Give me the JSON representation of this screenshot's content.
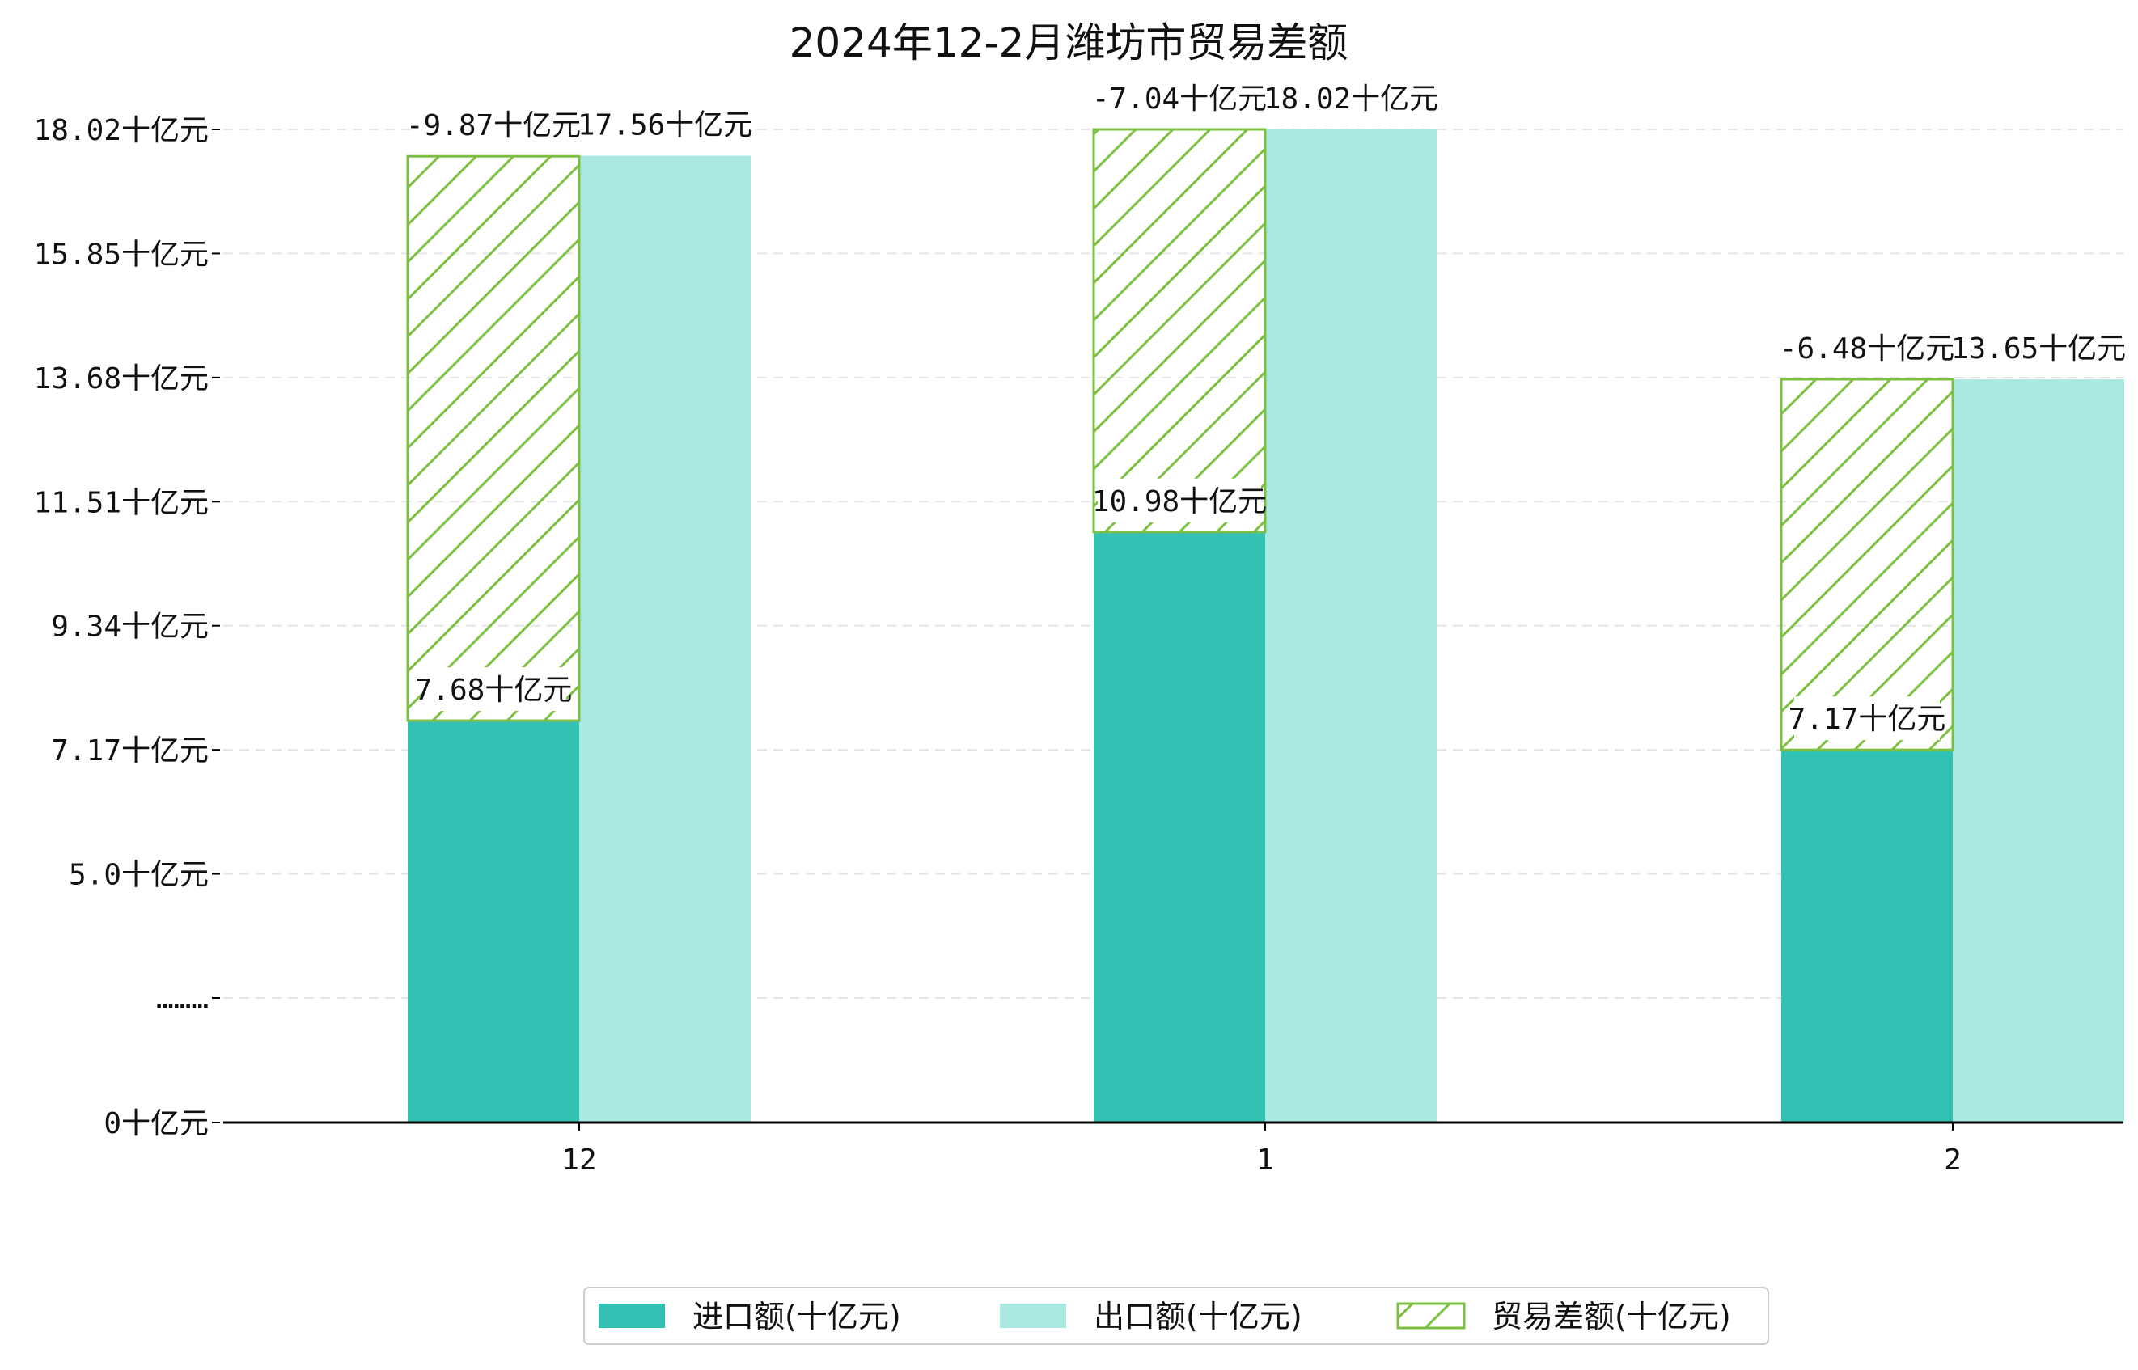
{
  "chart_data": {
    "type": "bar",
    "title": "2024年12-2月潍坊市贸易差额",
    "xlabel": "",
    "ylabel": "",
    "categories": [
      "12",
      "1",
      "2"
    ],
    "series": [
      {
        "name": "进口额(十亿元)",
        "values": [
          7.68,
          10.98,
          7.17
        ],
        "labels": [
          "7.68十亿元",
          "10.98十亿元",
          "7.17十亿元"
        ]
      },
      {
        "name": "出口额(十亿元)",
        "values": [
          17.56,
          18.02,
          13.65
        ],
        "labels": [
          "17.56十亿元",
          "18.02十亿元",
          "13.65十亿元"
        ]
      },
      {
        "name": "贸易差额(十亿元)",
        "values": [
          -9.87,
          -7.04,
          -6.48
        ],
        "labels": [
          "-9.87十亿元",
          "-7.04十亿元",
          "-6.48十亿元"
        ]
      }
    ],
    "y_tick_labels": [
      "0十亿元",
      "………",
      "5.0十亿元",
      "7.17十亿元",
      "9.34十亿元",
      "11.51十亿元",
      "13.68十亿元",
      "15.85十亿元",
      "18.02十亿元"
    ],
    "y_tick_values": [
      0,
      2.83,
      5.0,
      7.17,
      9.34,
      11.51,
      13.68,
      15.85,
      18.02
    ],
    "axis_break": {
      "from": 0,
      "to": 2.83
    },
    "grid": true,
    "legend_position": "bottom-center",
    "colors": {
      "import": "#33c1b3",
      "export": "#aae8e2",
      "balance": "#7cbf42",
      "grid": "#e5e5e5",
      "axis": "#000000"
    }
  }
}
